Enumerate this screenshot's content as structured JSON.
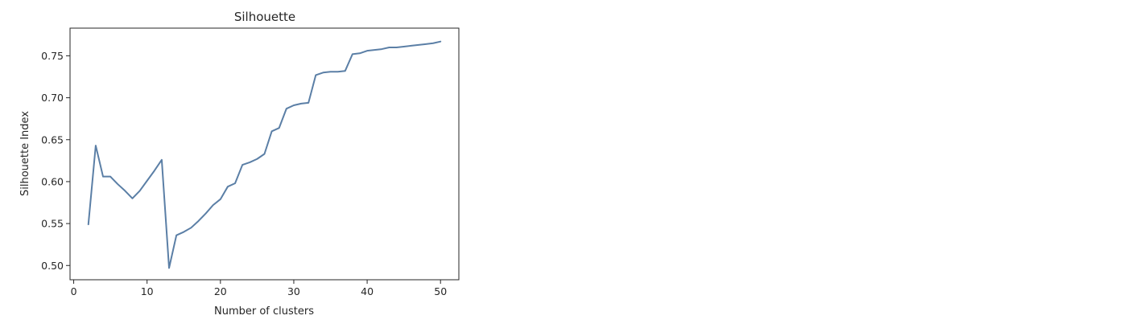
{
  "chart_data": {
    "type": "line",
    "title": "Silhouette",
    "xlabel": "Number of clusters",
    "ylabel": "Silhouette Index",
    "xlim": [
      -0.5,
      52.5
    ],
    "ylim": [
      0.483,
      0.783
    ],
    "xticks": [
      0,
      10,
      20,
      30,
      40,
      50
    ],
    "xtick_labels": [
      "0",
      "10",
      "20",
      "30",
      "40",
      "50"
    ],
    "yticks": [
      0.5,
      0.55,
      0.6,
      0.65,
      0.7,
      0.75
    ],
    "ytick_labels": [
      "0.50",
      "0.55",
      "0.60",
      "0.65",
      "0.70",
      "0.75"
    ],
    "grid": false,
    "line_color": "#5b7fa6",
    "series": [
      {
        "x": [
          2,
          3,
          4,
          5,
          6,
          7,
          8,
          9,
          10,
          11,
          12,
          13,
          14,
          15,
          16,
          17,
          18,
          19,
          20,
          21,
          22,
          23,
          24,
          25,
          26,
          27,
          28,
          29,
          30,
          31,
          32,
          33,
          34,
          35,
          36,
          37,
          38,
          39,
          40,
          41,
          42,
          43,
          44,
          45,
          46,
          47,
          48,
          49,
          50
        ],
        "values": [
          0.549,
          0.643,
          0.606,
          0.606,
          0.597,
          0.589,
          0.58,
          0.589,
          0.601,
          0.613,
          0.626,
          0.497,
          0.536,
          0.54,
          0.545,
          0.553,
          0.562,
          0.572,
          0.579,
          0.594,
          0.598,
          0.62,
          0.623,
          0.627,
          0.633,
          0.66,
          0.664,
          0.687,
          0.691,
          0.693,
          0.694,
          0.727,
          0.73,
          0.731,
          0.731,
          0.732,
          0.752,
          0.753,
          0.756,
          0.757,
          0.758,
          0.76,
          0.76,
          0.761,
          0.762,
          0.763,
          0.764,
          0.765,
          0.767
        ]
      }
    ]
  }
}
